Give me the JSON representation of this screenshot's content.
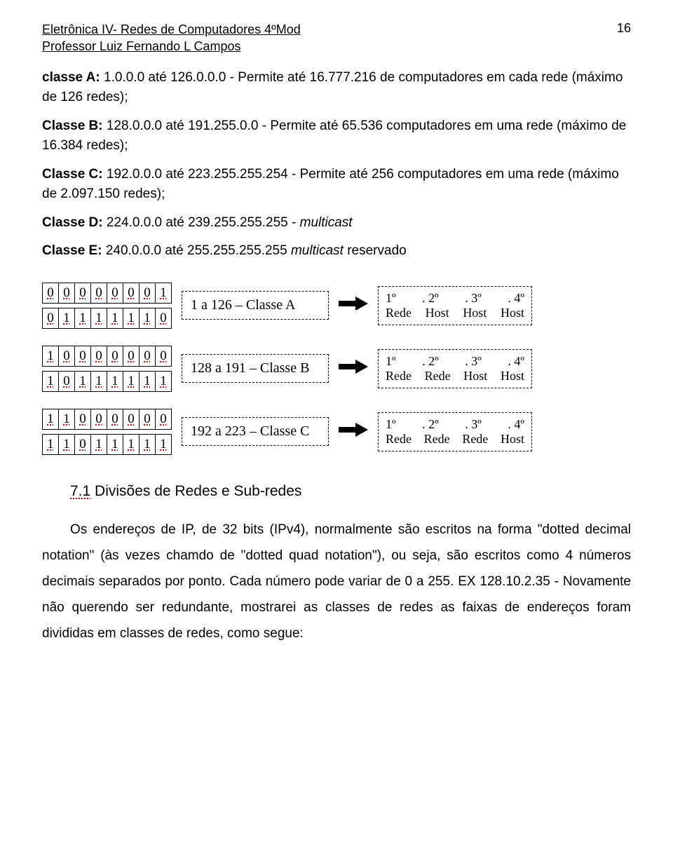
{
  "header": {
    "course_title": "Eletrônica IV- Redes de Computadores 4ºMod",
    "professor": "Professor Luiz Fernando L Campos",
    "page_number": "16"
  },
  "classes": {
    "a": {
      "label": "classe A:",
      "range": "1.0.0.0 até 126.0.0.0 - Permite até 16.777.216 de computadores em cada rede (máximo de 126 redes);"
    },
    "b": {
      "label": "Classe B:",
      "range": "128.0.0.0 até 191.255.0.0 - Permite até 65.536 computadores em uma rede (máximo de 16.384 redes);"
    },
    "c": {
      "label": "Classe C:",
      "range": "192.0.0.0 até 223.255.255.254 - Permite até 256 computadores em uma rede (máximo de 2.097.150 redes);"
    },
    "d": {
      "label": "Classe D:",
      "range_prefix": "224.0.0.0 até 239.255.255.255 - ",
      "range_italic": "multicast"
    },
    "e": {
      "label": "Classe E:",
      "range_prefix": "240.0.0.0 até 255.255.255.255 ",
      "range_italic": "multicast",
      "range_suffix": " reservado"
    }
  },
  "diagram": {
    "rows": [
      {
        "bits_top": [
          "0",
          "0",
          "0",
          "0",
          "0",
          "0",
          "0",
          "1"
        ],
        "bits_bottom": [
          "0",
          "1",
          "1",
          "1",
          "1",
          "1",
          "1",
          "0"
        ],
        "range_label": "1 a 126 – Classe A",
        "octet_top": [
          "1º",
          ". 2º",
          ". 3º",
          ". 4º"
        ],
        "octet_bottom": [
          "Rede",
          "Host",
          "Host",
          "Host"
        ]
      },
      {
        "bits_top": [
          "1",
          "0",
          "0",
          "0",
          "0",
          "0",
          "0",
          "0"
        ],
        "bits_bottom": [
          "1",
          "0",
          "1",
          "1",
          "1",
          "1",
          "1",
          "1"
        ],
        "range_label": "128 a 191 – Classe B",
        "octet_top": [
          "1º",
          ". 2º",
          ". 3º",
          ". 4º"
        ],
        "octet_bottom": [
          "Rede",
          "Rede",
          "Host",
          "Host"
        ]
      },
      {
        "bits_top": [
          "1",
          "1",
          "0",
          "0",
          "0",
          "0",
          "0",
          "0"
        ],
        "bits_bottom": [
          "1",
          "1",
          "0",
          "1",
          "1",
          "1",
          "1",
          "1"
        ],
        "range_label": "192 a 223 – Classe C",
        "octet_top": [
          "1º",
          ". 2º",
          ". 3º",
          ". 4º"
        ],
        "octet_bottom": [
          "Rede",
          "Rede",
          "Rede",
          "Host"
        ]
      }
    ]
  },
  "section": {
    "number": "7.1",
    "title": "Divisões de Redes e Sub-redes",
    "body": "Os endereços de IP, de 32 bits (IPv4), normalmente são escritos na forma \"dotted decimal notation\" (às vezes chamdo de \"dotted quad notation\"), ou seja, são escritos como 4 números decimais separados por ponto. Cada número pode variar de 0 a 255. EX 128.10.2.35 - Novamente não querendo ser redundante, mostrarei as classes de redes as faixas de endereços foram divididas em classes de redes, como segue:"
  }
}
